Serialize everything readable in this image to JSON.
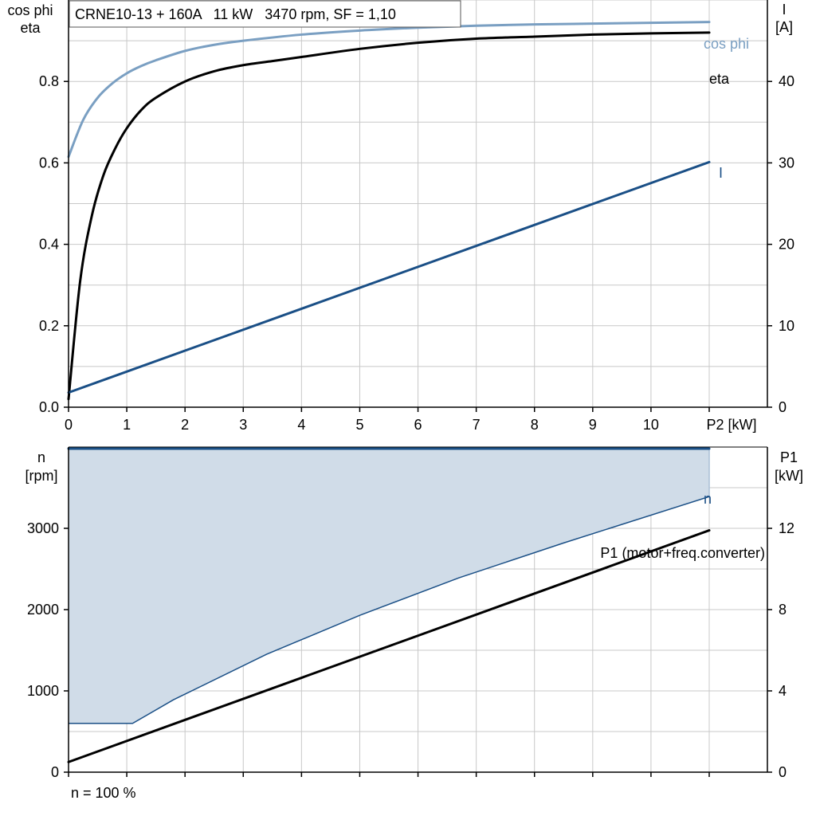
{
  "colors": {
    "grid": "#c8c8c8",
    "axis": "#000000",
    "cosphi": "#7a9fc2",
    "eta": "#000000",
    "current": "#1a4f86",
    "speed": "#1a4f86",
    "range_fill": "#d0dce8",
    "range_edge": "#1a4f86",
    "p1": "#000000"
  },
  "chart_data": [
    {
      "type": "line",
      "title": "CRNE10-13 + 160A   11 kW   3470 rpm, SF = 1,10",
      "xlabel": "P2 [kW]",
      "ylabel_left": [
        "cos phi",
        "eta"
      ],
      "ylabel_right": [
        "I",
        "[A]"
      ],
      "xlim": [
        0,
        12
      ],
      "ylim_left": [
        0,
        1.0
      ],
      "ylim_right": [
        0,
        50
      ],
      "xticks": [
        "0",
        "1",
        "2",
        "3",
        "4",
        "5",
        "6",
        "7",
        "8",
        "9",
        "10"
      ],
      "xtick_values": [
        0,
        1,
        2,
        3,
        4,
        5,
        6,
        7,
        8,
        9,
        10
      ],
      "yticks_left": [
        "0.0",
        "0.2",
        "0.4",
        "0.6",
        "0.8"
      ],
      "ytick_values_left": [
        0,
        0.2,
        0.4,
        0.6,
        0.8
      ],
      "yticks_right": [
        "0",
        "10",
        "20",
        "30",
        "40"
      ],
      "ytick_values_right": [
        0,
        10,
        20,
        30,
        40
      ],
      "grid": true,
      "series": [
        {
          "name": "cos phi",
          "axis": "left",
          "color_key": "cosphi",
          "x": [
            0,
            0.25,
            0.5,
            0.75,
            1,
            1.25,
            1.5,
            2,
            2.5,
            3,
            4,
            5,
            6,
            7,
            8,
            9,
            10,
            11
          ],
          "y": [
            0.615,
            0.705,
            0.76,
            0.795,
            0.82,
            0.838,
            0.852,
            0.875,
            0.89,
            0.9,
            0.915,
            0.925,
            0.932,
            0.937,
            0.94,
            0.942,
            0.944,
            0.946
          ]
        },
        {
          "name": "eta",
          "axis": "left",
          "color_key": "eta",
          "x": [
            0,
            0.2,
            0.4,
            0.6,
            0.8,
            1,
            1.25,
            1.5,
            2,
            2.5,
            3,
            3.5,
            4,
            5,
            6,
            7,
            8,
            9,
            10,
            11
          ],
          "y": [
            0.02,
            0.31,
            0.47,
            0.57,
            0.635,
            0.685,
            0.73,
            0.76,
            0.8,
            0.825,
            0.84,
            0.85,
            0.86,
            0.88,
            0.895,
            0.905,
            0.91,
            0.915,
            0.918,
            0.92
          ]
        },
        {
          "name": "I",
          "axis": "right",
          "color_key": "current",
          "x": [
            0,
            11
          ],
          "y": [
            1.8,
            30.1
          ]
        }
      ]
    },
    {
      "type": "area",
      "xlabel": "",
      "ylabel_left": [
        "n",
        "[rpm]"
      ],
      "ylabel_right": [
        "P1",
        "[kW]"
      ],
      "xlim": [
        0,
        12
      ],
      "ylim_left": [
        0,
        4000
      ],
      "ylim_right": [
        0,
        16
      ],
      "yticks_left": [
        "0",
        "1000",
        "2000",
        "3000"
      ],
      "ytick_values_left": [
        0,
        1000,
        2000,
        3000
      ],
      "yticks_right": [
        "0",
        "4",
        "8",
        "12"
      ],
      "ytick_values_right": [
        0,
        4,
        8,
        12
      ],
      "grid": true,
      "footnote": "n = 100 %",
      "speed_range": {
        "upper": {
          "x": [
            0,
            11
          ],
          "y": [
            3980,
            3980
          ]
        },
        "lower": {
          "x": [
            0,
            1.1,
            1.8,
            3.4,
            5,
            6.7,
            8.5,
            11
          ],
          "y": [
            600,
            600,
            890,
            1450,
            1930,
            2390,
            2820,
            3390
          ]
        }
      },
      "series": [
        {
          "name": "n",
          "axis": "left",
          "color_key": "speed",
          "x": [
            0,
            11
          ],
          "y": [
            3980,
            3980
          ]
        },
        {
          "name": "P1 (motor+freq.converter)",
          "axis": "right",
          "color_key": "p1",
          "x": [
            0,
            11
          ],
          "y": [
            0.5,
            11.9
          ]
        }
      ]
    }
  ]
}
